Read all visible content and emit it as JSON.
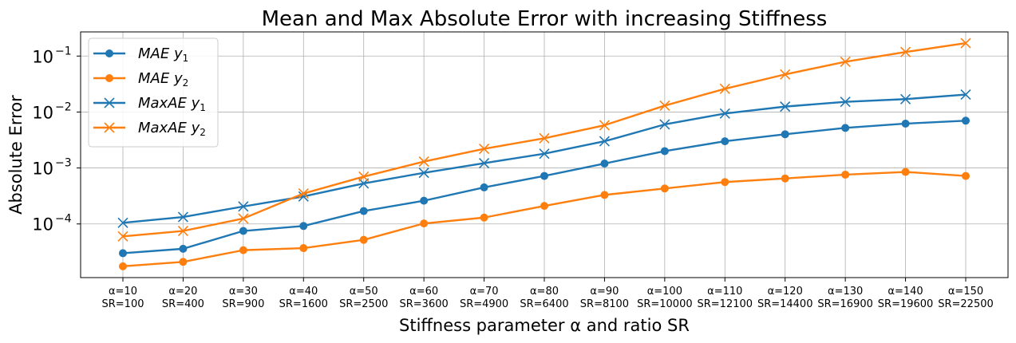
{
  "chart_data": {
    "type": "line",
    "title": "Mean and Max Absolute Error with increasing Stiffness",
    "xlabel": "Stiffness parameter α and ratio SR",
    "ylabel": "Absolute Error",
    "yscale": "log",
    "ylim": [
      1.1e-05,
      0.27
    ],
    "yticks": [
      {
        "value": 0.0001,
        "base": "10",
        "exp": "−4"
      },
      {
        "value": 0.001,
        "base": "10",
        "exp": "−3"
      },
      {
        "value": 0.01,
        "base": "10",
        "exp": "−2"
      },
      {
        "value": 0.1,
        "base": "10",
        "exp": "−1"
      }
    ],
    "grid": true,
    "legend_position": "top-left",
    "categories": [
      {
        "alpha": "α=10",
        "sr": "SR=100"
      },
      {
        "alpha": "α=20",
        "sr": "SR=400"
      },
      {
        "alpha": "α=30",
        "sr": "SR=900"
      },
      {
        "alpha": "α=40",
        "sr": "SR=1600"
      },
      {
        "alpha": "α=50",
        "sr": "SR=2500"
      },
      {
        "alpha": "α=60",
        "sr": "SR=3600"
      },
      {
        "alpha": "α=70",
        "sr": "SR=4900"
      },
      {
        "alpha": "α=80",
        "sr": "SR=6400"
      },
      {
        "alpha": "α=90",
        "sr": "SR=8100"
      },
      {
        "alpha": "α=100",
        "sr": "SR=10000"
      },
      {
        "alpha": "α=110",
        "sr": "SR=12100"
      },
      {
        "alpha": "α=120",
        "sr": "SR=14400"
      },
      {
        "alpha": "α=130",
        "sr": "SR=16900"
      },
      {
        "alpha": "α=140",
        "sr": "SR=19600"
      },
      {
        "alpha": "α=150",
        "sr": "SR=22500"
      }
    ],
    "series": [
      {
        "name": "MAE y1",
        "label_main": "MAE y",
        "label_sub": "1",
        "color": "#1f77b4",
        "marker": "circle",
        "values": [
          3e-05,
          3.6e-05,
          7.5e-05,
          9.2e-05,
          0.00017,
          0.00026,
          0.00045,
          0.00072,
          0.0012,
          0.002,
          0.003,
          0.004,
          0.0052,
          0.0062,
          0.007
        ]
      },
      {
        "name": "MAE y2",
        "label_main": "MAE y",
        "label_sub": "2",
        "color": "#ff7f0e",
        "marker": "circle",
        "values": [
          1.75e-05,
          2.1e-05,
          3.4e-05,
          3.7e-05,
          5.2e-05,
          0.000102,
          0.00013,
          0.00021,
          0.00033,
          0.00043,
          0.00056,
          0.00065,
          0.00076,
          0.00085,
          0.00072
        ]
      },
      {
        "name": "MaxAE y1",
        "label_main": "MaxAE y",
        "label_sub": "1",
        "color": "#1f77b4",
        "marker": "x",
        "values": [
          0.000105,
          0.000133,
          0.000205,
          0.00031,
          0.00053,
          0.00082,
          0.00122,
          0.0018,
          0.003,
          0.006,
          0.0094,
          0.0125,
          0.0152,
          0.017,
          0.0205
        ]
      },
      {
        "name": "MaxAE y2",
        "label_main": "MaxAE y",
        "label_sub": "2",
        "color": "#ff7f0e",
        "marker": "x",
        "values": [
          6e-05,
          7.5e-05,
          0.000125,
          0.00035,
          0.0007,
          0.0013,
          0.0022,
          0.0034,
          0.0058,
          0.013,
          0.026,
          0.047,
          0.079,
          0.118,
          0.17
        ]
      }
    ]
  }
}
